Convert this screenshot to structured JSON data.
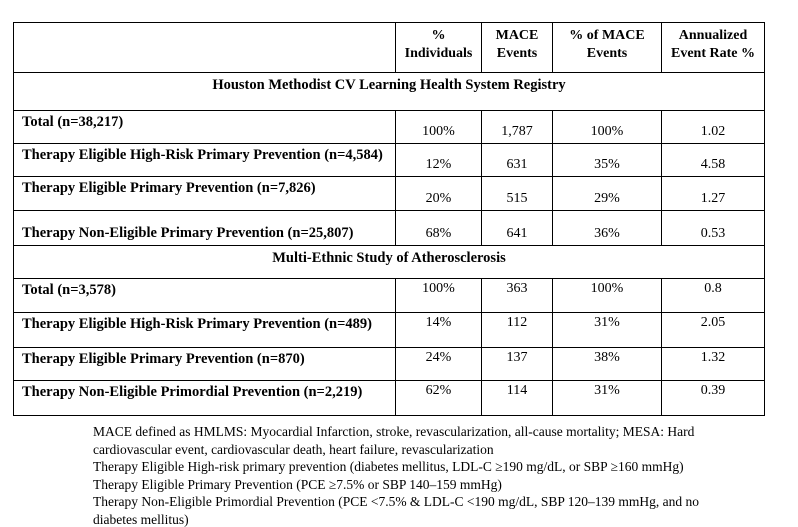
{
  "table": {
    "columns": [
      "",
      "% Individuals",
      "MACE Events",
      "% of MACE Events",
      "Annualized Event Rate %"
    ],
    "sections": [
      {
        "title": "Houston Methodist CV Learning Health System Registry",
        "rows": [
          {
            "label": "Total (n=38,217)",
            "values": [
              "100%",
              "1,787",
              "100%",
              "1.02"
            ]
          },
          {
            "label": "Therapy Eligible High-Risk Primary Prevention (n=4,584)",
            "values": [
              "12%",
              "631",
              "35%",
              "4.58"
            ]
          },
          {
            "label": "Therapy Eligible Primary Prevention (n=7,826)",
            "values": [
              "20%",
              "515",
              "29%",
              "1.27"
            ]
          },
          {
            "label": "Therapy Non-Eligible Primary Prevention (n=25,807)",
            "values": [
              "68%",
              "641",
              "36%",
              "0.53"
            ]
          }
        ]
      },
      {
        "title": "Multi-Ethnic Study of Atherosclerosis",
        "rows": [
          {
            "label": "Total (n=3,578)",
            "values": [
              "100%",
              "363",
              "100%",
              "0.8"
            ]
          },
          {
            "label": "Therapy Eligible High-Risk Primary Prevention (n=489)",
            "values": [
              "14%",
              "112",
              "31%",
              "2.05"
            ]
          },
          {
            "label": "Therapy Eligible Primary Prevention (n=870)",
            "values": [
              "24%",
              "137",
              "38%",
              "1.32"
            ]
          },
          {
            "label": "Therapy Non-Eligible Primordial Prevention (n=2,219)",
            "values": [
              "62%",
              "114",
              "31%",
              "0.39"
            ]
          }
        ]
      }
    ]
  },
  "footnotes": [
    "MACE defined as HMLMS: Myocardial Infarction, stroke, revascularization, all-cause mortality; MESA: Hard cardiovascular event, cardiovascular death, heart failure, revascularization",
    "Therapy Eligible High-risk primary prevention (diabetes mellitus, LDL-C ≥190 mg/dL, or SBP ≥160 mmHg)",
    "Therapy Eligible Primary Prevention (PCE ≥7.5% or SBP 140–159 mmHg)",
    "Therapy Non-Eligible Primordial Prevention (PCE <7.5% & LDL-C <190 mg/dL, SBP 120–139 mmHg, and no diabetes mellitus)"
  ],
  "colors": {
    "border": "#000000",
    "text": "#000000",
    "background": "#ffffff"
  }
}
